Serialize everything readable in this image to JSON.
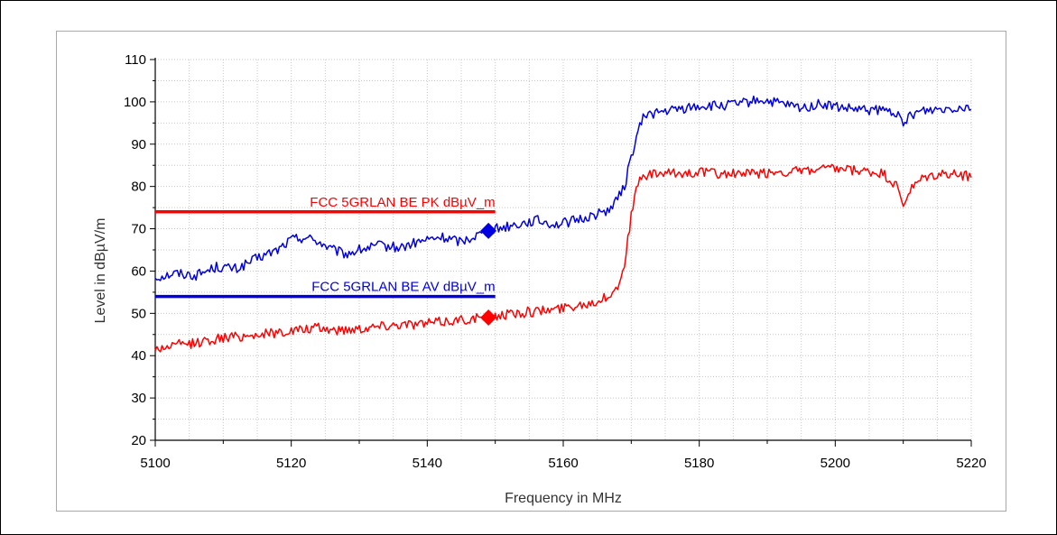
{
  "chart_data": {
    "type": "line",
    "xlabel": "Frequency in MHz",
    "ylabel": "Level in dBµV/m",
    "xlim": [
      5100,
      5220
    ],
    "ylim": [
      20,
      110
    ],
    "x_ticks": [
      5100,
      5120,
      5140,
      5160,
      5180,
      5200,
      5220
    ],
    "y_ticks": [
      20,
      30,
      40,
      50,
      60,
      70,
      80,
      90,
      100,
      110
    ],
    "grid": true,
    "series": [
      {
        "color": "#0000e0",
        "x": [
          5100,
          5103,
          5106,
          5109,
          5112,
          5115,
          5118,
          5120,
          5122,
          5124,
          5126,
          5128,
          5130,
          5133,
          5136,
          5139,
          5142,
          5145,
          5148,
          5150,
          5153,
          5156,
          5159,
          5162,
          5164,
          5166,
          5167,
          5168,
          5169,
          5170,
          5171,
          5172,
          5174,
          5176,
          5178,
          5180,
          5183,
          5186,
          5189,
          5192,
          5195,
          5198,
          5201,
          5204,
          5207,
          5209,
          5210,
          5211,
          5213,
          5216,
          5220
        ],
        "y": [
          58.5,
          59.5,
          59,
          61,
          60.5,
          63,
          65,
          67.5,
          68,
          67,
          65,
          64,
          65,
          66,
          65.5,
          67,
          68,
          67,
          69,
          70,
          71,
          72,
          71,
          72,
          73,
          74,
          75,
          77,
          80,
          87,
          93,
          97,
          97.5,
          98,
          98.5,
          99,
          99,
          99.5,
          100.5,
          99.5,
          98.5,
          99.5,
          98.5,
          98,
          98,
          97.5,
          94,
          97,
          98,
          98.5,
          99
        ]
      },
      {
        "color": "#ff0000",
        "x": [
          5100,
          5103,
          5106,
          5109,
          5112,
          5115,
          5118,
          5121,
          5124,
          5127,
          5130,
          5133,
          5136,
          5139,
          5142,
          5145,
          5148,
          5150,
          5153,
          5156,
          5159,
          5162,
          5164,
          5166,
          5168,
          5169,
          5170,
          5171,
          5172,
          5174,
          5177,
          5180,
          5183,
          5186,
          5189,
          5192,
          5195,
          5198,
          5201,
          5204,
          5207,
          5209,
          5210,
          5211,
          5213,
          5216,
          5220
        ],
        "y": [
          41.5,
          42.5,
          43,
          44,
          44.5,
          45,
          45.5,
          46,
          46.5,
          46,
          46.5,
          47,
          47.5,
          47.5,
          48,
          48.5,
          49,
          49.5,
          50,
          50.5,
          51,
          52,
          52.5,
          53.5,
          56,
          62,
          73,
          81,
          82.5,
          83,
          83,
          83.5,
          83,
          83,
          83,
          83.5,
          83.5,
          84,
          84,
          83.5,
          83,
          80,
          75.5,
          79,
          82,
          83,
          82.5
        ]
      }
    ],
    "limit_lines": [
      {
        "label": "FCC 5GRLAN BE PK dBµV_m",
        "color": "#ff0000",
        "x_start": 5100,
        "x_end": 5150,
        "y": 74
      },
      {
        "label": "FCC 5GRLAN BE AV dBµV_m",
        "color": "#0000e0",
        "x_start": 5100,
        "x_end": 5150,
        "y": 54
      }
    ],
    "markers": [
      {
        "x": 5149,
        "y": 69.5,
        "color": "#0000e0",
        "shape": "diamond"
      },
      {
        "x": 5149,
        "y": 49,
        "color": "#ff0000",
        "shape": "diamond"
      }
    ]
  }
}
